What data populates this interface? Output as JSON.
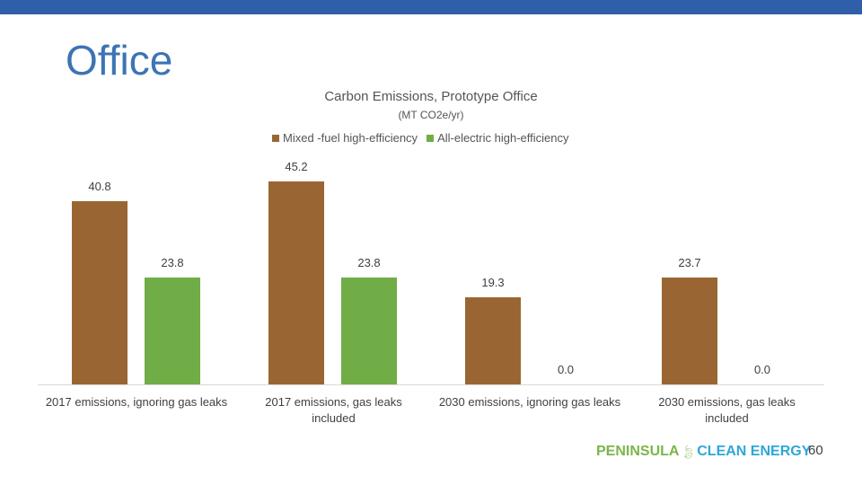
{
  "header": {
    "bar_color": "#2e5fa8"
  },
  "slide": {
    "title": "Office",
    "page_number": "60"
  },
  "footer": {
    "logo_left": "PENINSULA",
    "logo_icon": "leaf-icon",
    "logo_right": "CLEAN ENERGY"
  },
  "chart_data": {
    "type": "bar",
    "title": "Carbon Emissions, Prototype Office",
    "subtitle": "(MT CO2e/yr)",
    "xlabel": "",
    "ylabel": "",
    "categories": [
      "2017 emissions, ignoring gas leaks",
      "2017 emissions, gas leaks included",
      "2030 emissions, ignoring gas leaks",
      "2030 emissions, gas leaks included"
    ],
    "series": [
      {
        "name": "Mixed -fuel high-efficiency",
        "color": "#996633",
        "values": [
          40.8,
          45.2,
          19.3,
          23.7
        ],
        "labels": [
          "40.8",
          "45.2",
          "19.3",
          "23.7"
        ]
      },
      {
        "name": "All-electric high-efficiency",
        "color": "#70ad47",
        "values": [
          23.8,
          23.8,
          0.0,
          0.0
        ],
        "labels": [
          "23.8",
          "23.8",
          "0.0",
          "0.0"
        ]
      }
    ],
    "legend_position": "top",
    "grid": false,
    "ylim": [
      0,
      50
    ]
  }
}
